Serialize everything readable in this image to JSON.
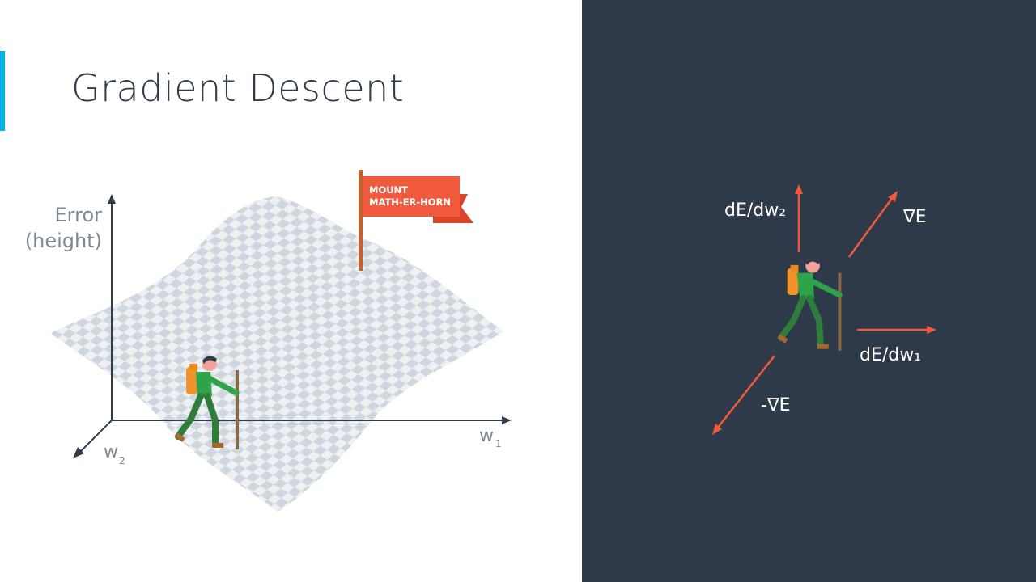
{
  "title": "Gradient Descent",
  "left_diagram": {
    "y_axis_label_line1": "Error",
    "y_axis_label_line2": "(height)",
    "x1_axis_label": "w",
    "x1_axis_subscript": "1",
    "x2_axis_label": "w",
    "x2_axis_subscript": "2",
    "flag_line1": "MOUNT",
    "flag_line2": "MATH-ER-HORN"
  },
  "right_diagram": {
    "dw2_label": "dE/dw₂",
    "grad_label": "∇E",
    "dw1_label": "dE/dw₁",
    "neg_grad_label": "-∇E"
  },
  "colors": {
    "accent": "#02b3e4",
    "title": "#2e3d49",
    "dark_panel": "#2e3a49",
    "flag": "#f15a3c",
    "vector": "#f15a3c",
    "surface_light": "#eef1f4",
    "surface_dark": "#cfd6de"
  },
  "icons": [
    "hiker-icon",
    "flag-icon"
  ]
}
